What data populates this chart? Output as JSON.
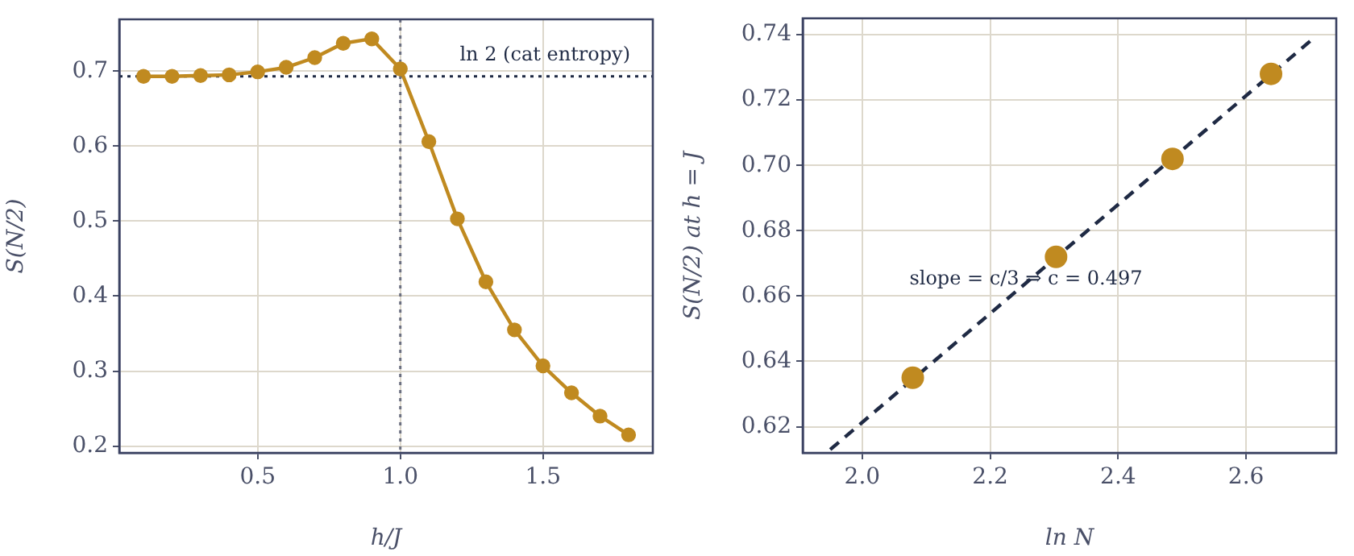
{
  "chart_data": [
    {
      "type": "line",
      "xlabel": "h/J",
      "ylabel": "S(N/2)",
      "x": [
        0.1,
        0.2,
        0.3,
        0.4,
        0.5,
        0.6,
        0.7,
        0.8,
        0.9,
        1.0,
        1.1,
        1.2,
        1.3,
        1.4,
        1.5,
        1.6,
        1.7,
        1.8
      ],
      "series": [
        {
          "color": "#c08a20",
          "values": [
            0.693,
            0.693,
            0.694,
            0.695,
            0.699,
            0.705,
            0.718,
            0.737,
            0.743,
            0.703,
            0.606,
            0.503,
            0.419,
            0.355,
            0.307,
            0.271,
            0.24,
            0.215
          ]
        }
      ],
      "xlim": [
        0.015,
        1.885
      ],
      "xticks": [
        0.5,
        {
          "value": 1,
          "label": "1.0"
        },
        1.5
      ],
      "ylim": [
        0.191,
        0.769
      ],
      "yticks": [
        0.2,
        0.3,
        0.4,
        0.5,
        0.6,
        0.7
      ],
      "ref_lines": [
        {
          "axis": "y",
          "value": 0.693,
          "label": "ln 2 (cat entropy)",
          "color": "#1f2a44",
          "line_style": "dotted"
        },
        {
          "axis": "x",
          "value": 1.0,
          "color": "#6b6f80",
          "line_style": "dotted"
        }
      ],
      "marker": "circle",
      "grid": true,
      "legend": false
    },
    {
      "type": "scatter",
      "xlabel": "ln N",
      "ylabel": "S(N/2) at h = J",
      "x": [
        2.079,
        2.303,
        2.485,
        2.639
      ],
      "series": [
        {
          "color": "#c08a20",
          "values": [
            0.635,
            0.672,
            0.702,
            0.728
          ]
        },
        {
          "type": "line",
          "x": [
            1.95,
            2.7
          ],
          "values": [
            0.613,
            0.738
          ],
          "color": "#1f2a44",
          "line_style": "dashed",
          "marker": "none"
        }
      ],
      "xlim": [
        1.907,
        2.741
      ],
      "xticks": [
        {
          "value": 2,
          "label": "2.0"
        },
        2.2,
        2.4,
        2.6
      ],
      "ylim": [
        0.612,
        0.745
      ],
      "yticks": [
        0.62,
        0.64,
        0.66,
        0.68,
        {
          "value": 0.7,
          "label": "0.70"
        },
        0.72,
        0.74
      ],
      "annotations": [
        "slope = c/3 ⇒ c = 0.497"
      ],
      "marker": "circle",
      "grid": true,
      "legend": false
    }
  ]
}
